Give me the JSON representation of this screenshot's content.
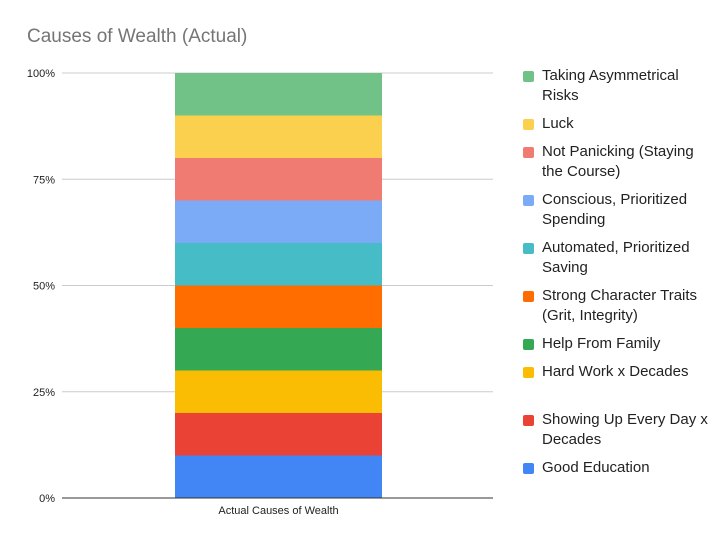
{
  "chart_data": {
    "type": "bar",
    "stacked": true,
    "percent_stacked": true,
    "title": "Causes of Wealth (Actual)",
    "xlabel": "",
    "ylabel": "",
    "categories": [
      "Actual Causes of Wealth"
    ],
    "ylim": [
      0,
      100
    ],
    "y_ticks": [
      "0%",
      "25%",
      "50%",
      "75%",
      "100%"
    ],
    "grid": true,
    "legend_position": "right",
    "series": [
      {
        "name": "Good Education",
        "values": [
          10
        ],
        "color": "#4285f4"
      },
      {
        "name": "Showing Up Every Day x Decades",
        "values": [
          10
        ],
        "color": "#ea4335"
      },
      {
        "name": "Hard Work x Decades",
        "values": [
          10
        ],
        "color": "#fbbc04"
      },
      {
        "name": "Help From Family",
        "values": [
          10
        ],
        "color": "#34a853"
      },
      {
        "name": "Strong Character Traits (Grit, Integrity)",
        "values": [
          10
        ],
        "color": "#ff6d01"
      },
      {
        "name": "Automated, Prioritized Saving",
        "values": [
          10
        ],
        "color": "#46bdc6"
      },
      {
        "name": "Conscious, Prioritized Spending",
        "values": [
          10
        ],
        "color": "#7baaf7"
      },
      {
        "name": "Not Panicking (Staying the Course)",
        "values": [
          10
        ],
        "color": "#f07b72"
      },
      {
        "name": "Luck",
        "values": [
          10
        ],
        "color": "#fcd04f"
      },
      {
        "name": "Taking Asymmetrical Risks",
        "values": [
          10
        ],
        "color": "#71c287"
      }
    ],
    "legend_order": [
      {
        "label": "Taking Asymmetrical Risks",
        "color": "#71c287"
      },
      {
        "label": "Luck",
        "color": "#fcd04f"
      },
      {
        "label": "Not Panicking (Staying the Course)",
        "color": "#f07b72"
      },
      {
        "label": "Conscious, Prioritized Spending",
        "color": "#7baaf7"
      },
      {
        "label": "Automated, Prioritized Saving",
        "color": "#46bdc6"
      },
      {
        "label": "Strong Character Traits (Grit, Integrity)",
        "color": "#ff6d01"
      },
      {
        "label": "Help From Family",
        "color": "#34a853"
      },
      {
        "label": "Hard Work x Decades",
        "color": "#fbbc04"
      },
      {
        "label": "Showing Up Every Day x Decades",
        "color": "#ea4335"
      },
      {
        "label": "Good Education",
        "color": "#4285f4"
      }
    ]
  }
}
